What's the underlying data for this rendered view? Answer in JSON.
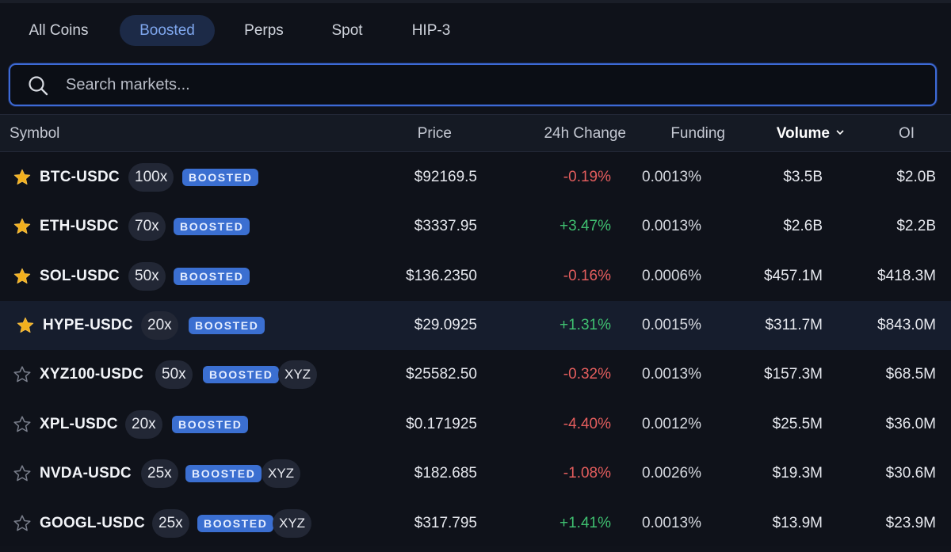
{
  "tabs": [
    {
      "label": "All Coins",
      "active": false
    },
    {
      "label": "Boosted",
      "active": true
    },
    {
      "label": "Perps",
      "active": false
    },
    {
      "label": "Spot",
      "active": false
    },
    {
      "label": "HIP-3",
      "active": false
    }
  ],
  "search": {
    "placeholder": "Search markets...",
    "value": "",
    "icon": "search-icon"
  },
  "columns": {
    "symbol": "Symbol",
    "price": "Price",
    "change": "24h Change",
    "funding": "Funding",
    "volume": "Volume",
    "oi": "OI",
    "sorted_by": "Volume"
  },
  "colors": {
    "positive": "#3fbf70",
    "negative": "#e35d5d",
    "accent": "#3b6fd1",
    "favorite": "#f2b01e"
  },
  "rows": [
    {
      "symbol": "BTC-USDC",
      "leverage": "100x",
      "badge": "BOOSTED",
      "tag": "",
      "favorite": true,
      "price": "$92169.5",
      "change": "-0.19%",
      "funding": "0.0013%",
      "volume": "$3.5B",
      "oi": "$2.0B"
    },
    {
      "symbol": "ETH-USDC",
      "leverage": "70x",
      "badge": "BOOSTED",
      "tag": "",
      "favorite": true,
      "price": "$3337.95",
      "change": "+3.47%",
      "funding": "0.0013%",
      "volume": "$2.6B",
      "oi": "$2.2B"
    },
    {
      "symbol": "SOL-USDC",
      "leverage": "50x",
      "badge": "BOOSTED",
      "tag": "",
      "favorite": true,
      "price": "$136.2350",
      "change": "-0.16%",
      "funding": "0.0006%",
      "volume": "$457.1M",
      "oi": "$418.3M"
    },
    {
      "symbol": "HYPE-USDC",
      "leverage": "20x",
      "badge": "BOOSTED",
      "tag": "",
      "favorite": true,
      "price": "$29.0925",
      "change": "+1.31%",
      "funding": "0.0015%",
      "volume": "$311.7M",
      "oi": "$843.0M"
    },
    {
      "symbol": "XYZ100-USDC",
      "leverage": "50x",
      "badge": "BOOSTED",
      "tag": "XYZ",
      "favorite": false,
      "price": "$25582.50",
      "change": "-0.32%",
      "funding": "0.0013%",
      "volume": "$157.3M",
      "oi": "$68.5M"
    },
    {
      "symbol": "XPL-USDC",
      "leverage": "20x",
      "badge": "BOOSTED",
      "tag": "",
      "favorite": false,
      "price": "$0.171925",
      "change": "-4.40%",
      "funding": "0.0012%",
      "volume": "$25.5M",
      "oi": "$36.0M"
    },
    {
      "symbol": "NVDA-USDC",
      "leverage": "25x",
      "badge": "BOOSTED",
      "tag": "XYZ",
      "favorite": false,
      "price": "$182.685",
      "change": "-1.08%",
      "funding": "0.0026%",
      "volume": "$19.3M",
      "oi": "$30.6M"
    },
    {
      "symbol": "GOOGL-USDC",
      "leverage": "25x",
      "badge": "BOOSTED",
      "tag": "XYZ",
      "favorite": false,
      "price": "$317.795",
      "change": "+1.41%",
      "funding": "0.0013%",
      "volume": "$13.9M",
      "oi": "$23.9M"
    }
  ]
}
